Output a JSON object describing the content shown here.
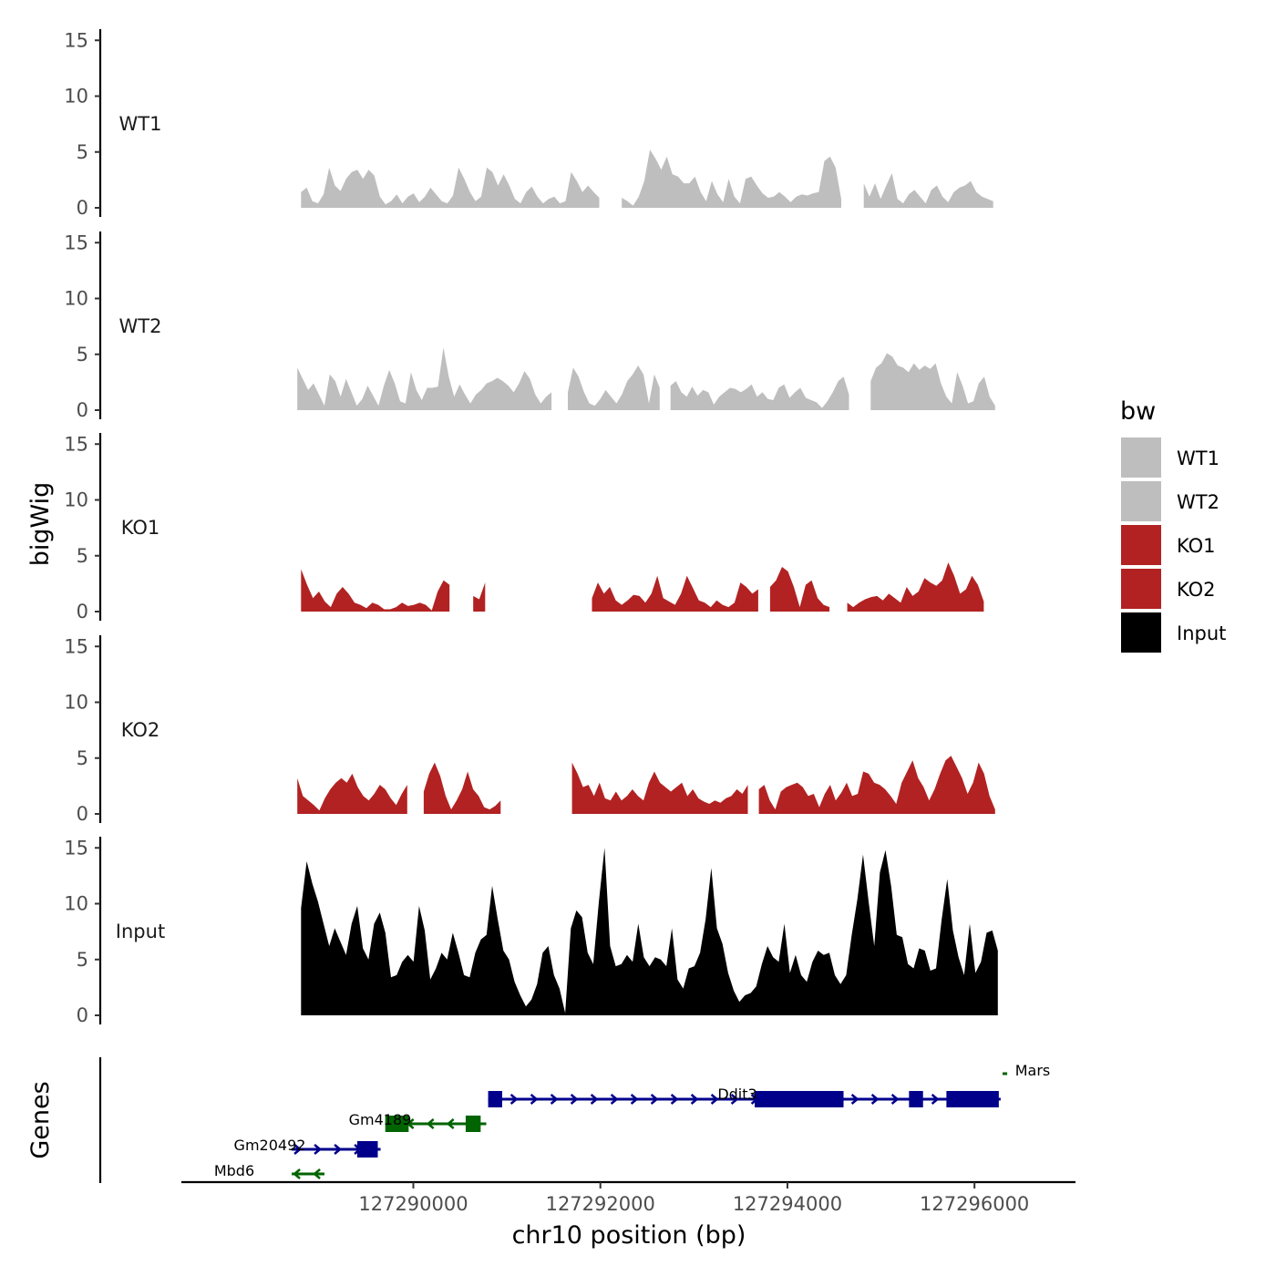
{
  "chart_data": {
    "type": "area",
    "title": "",
    "ylabel": "bigWig",
    "genes_label": "Genes",
    "xlabel": "chr10 position (bp)",
    "xlim": [
      127287520,
      127297080
    ],
    "x_ticks": [
      127290000,
      127292000,
      127294000,
      127296000
    ],
    "x_tick_labels": [
      "127290000",
      "127292000",
      "127294000",
      "127296000"
    ],
    "ylim": [
      0,
      16
    ],
    "y_ticks": [
      0,
      5,
      10,
      15
    ],
    "y_tick_labels": [
      "0",
      "5",
      "10",
      "15"
    ],
    "legend": {
      "title": "bw",
      "position": "right",
      "items": [
        {
          "label": "WT1",
          "color": "#bebebe"
        },
        {
          "label": "WT2",
          "color": "#bebebe"
        },
        {
          "label": "KO1",
          "color": "#b22222"
        },
        {
          "label": "KO2",
          "color": "#b22222"
        },
        {
          "label": "Input",
          "color": "#000000"
        }
      ]
    },
    "series": [
      {
        "name": "WT1",
        "color": "#bebebe",
        "x_start": 127288800,
        "x_end": 127296200,
        "gaps": [
          [
            127292000,
            127292200
          ],
          [
            127294600,
            127294800
          ]
        ],
        "profile": [
          1.4,
          1.8,
          0.6,
          0.4,
          1.2,
          3.6,
          2.0,
          1.5,
          2.6,
          3.2,
          3.4,
          2.6,
          3.4,
          2.9,
          1.0,
          0.3,
          0.6,
          1.2,
          0.4,
          1.0,
          1.3,
          0.5,
          1.0,
          1.8,
          1.2,
          0.6,
          0.4,
          1.1,
          3.6,
          2.6,
          1.4,
          0.6,
          1.0,
          3.6,
          3.2,
          2.0,
          3.0,
          2.0,
          0.8,
          0.4,
          1.4,
          1.9,
          1.0,
          0.4,
          0.8,
          1.0,
          0.4,
          0.6,
          3.2,
          2.4,
          1.4,
          2.0,
          1.4,
          0.9,
          1.4,
          1.0,
          0.5,
          0.9,
          0.6,
          0.2,
          1.0,
          2.4,
          5.2,
          4.4,
          3.4,
          4.6,
          3.0,
          2.8,
          2.2,
          2.2,
          2.8,
          1.4,
          0.6,
          2.4,
          1.2,
          0.5,
          2.6,
          1.0,
          0.4,
          2.6,
          2.8,
          2.0,
          1.3,
          0.9,
          1.0,
          1.4,
          1.0,
          0.5,
          1.0,
          1.2,
          1.1,
          1.3,
          1.4,
          4.2,
          4.6,
          3.6,
          0.8,
          0.4,
          2.6,
          3.0,
          2.2,
          1.0,
          2.2,
          0.8,
          2.0,
          3.1,
          0.8,
          0.4,
          1.2,
          1.6,
          1.0,
          0.4,
          1.6,
          2.0,
          1.0,
          0.5,
          1.4,
          1.8,
          2.0,
          2.4,
          1.4,
          1.0,
          0.8,
          0.6
        ]
      },
      {
        "name": "WT2",
        "color": "#bebebe",
        "x_start": 127288760,
        "x_end": 127296220,
        "gaps": [
          [
            127291480,
            127291620
          ],
          [
            127292660,
            127292740
          ],
          [
            127294700,
            127294860
          ]
        ],
        "profile": [
          3.8,
          2.8,
          1.8,
          2.4,
          1.4,
          0.4,
          3.2,
          2.6,
          1.2,
          2.8,
          1.6,
          0.4,
          1.0,
          2.2,
          1.3,
          0.4,
          2.2,
          3.6,
          2.4,
          0.8,
          0.6,
          3.4,
          1.8,
          0.9,
          2.0,
          2.0,
          2.1,
          5.6,
          3.0,
          1.2,
          2.3,
          1.4,
          0.6,
          1.4,
          1.8,
          2.4,
          2.6,
          2.9,
          2.6,
          2.2,
          1.6,
          2.4,
          3.5,
          2.8,
          1.4,
          0.6,
          1.2,
          1.6,
          2.8,
          1.4,
          1.6,
          3.8,
          3.0,
          1.6,
          0.6,
          0.4,
          1.0,
          1.8,
          1.2,
          0.6,
          1.4,
          2.6,
          3.2,
          4.0,
          3.2,
          0.6,
          3.2,
          2.0,
          1.8,
          2.2,
          2.6,
          1.6,
          1.2,
          2.1,
          1.3,
          1.8,
          1.6,
          0.5,
          1.2,
          1.6,
          2.0,
          1.9,
          1.6,
          1.9,
          2.3,
          1.2,
          1.6,
          1.0,
          0.9,
          2.0,
          2.3,
          1.1,
          1.6,
          2.0,
          1.1,
          0.9,
          0.7,
          0.2,
          0.8,
          1.6,
          2.6,
          3.0,
          1.4,
          2.6,
          3.4,
          0.8,
          2.6,
          3.8,
          4.2,
          5.1,
          4.8,
          4.0,
          3.8,
          3.4,
          4.2,
          3.6,
          4.0,
          3.7,
          4.2,
          2.4,
          1.2,
          0.6,
          3.4,
          2.2,
          0.6,
          0.8,
          2.4,
          3.0,
          1.2,
          0.4
        ]
      },
      {
        "name": "KO1",
        "color": "#b22222",
        "x_start": 127288800,
        "x_end": 127296100,
        "gaps": [
          [
            127290450,
            127290620
          ],
          [
            127290820,
            127291880
          ],
          [
            127293700,
            127293800
          ],
          [
            127294500,
            127294620
          ]
        ],
        "profile": [
          3.8,
          2.4,
          1.2,
          1.8,
          0.9,
          0.4,
          1.6,
          2.2,
          1.6,
          0.8,
          0.6,
          0.3,
          0.8,
          0.6,
          0.2,
          0.2,
          0.4,
          0.8,
          0.5,
          0.6,
          0.8,
          0.6,
          0.1,
          1.8,
          2.8,
          2.4,
          2.0,
          1.8,
          2.2,
          1.4,
          1.1,
          2.6,
          1.8,
          1.2,
          1.4,
          0.8,
          1.2,
          0.8,
          0.5,
          0.2,
          0.7,
          0.2,
          0.4,
          1.1,
          1.4,
          1.2,
          1.0,
          1.6,
          0.7,
          1.2,
          2.6,
          1.6,
          2.2,
          1.0,
          0.6,
          1.0,
          1.5,
          1.4,
          0.8,
          1.6,
          3.2,
          1.2,
          0.9,
          0.6,
          1.6,
          3.2,
          2.1,
          1.0,
          0.8,
          0.4,
          1.0,
          0.6,
          0.4,
          0.8,
          2.6,
          2.2,
          1.6,
          2.0,
          3.0,
          2.2,
          2.8,
          4.0,
          3.6,
          2.2,
          0.4,
          2.4,
          2.8,
          1.2,
          0.6,
          0.4,
          1.0,
          1.6,
          0.8,
          0.4,
          0.8,
          1.1,
          1.3,
          1.4,
          1.0,
          1.6,
          1.2,
          0.8,
          2.2,
          1.4,
          1.8,
          3.0,
          2.6,
          2.3,
          2.8,
          4.4,
          3.2,
          1.6,
          2.0,
          3.2,
          2.4,
          0.9
        ]
      },
      {
        "name": "KO2",
        "color": "#b22222",
        "x_start": 127288760,
        "x_end": 127296220,
        "gaps": [
          [
            127289950,
            127290100
          ],
          [
            127290980,
            127291650
          ],
          [
            127293600,
            127293680
          ]
        ],
        "profile": [
          3.2,
          1.6,
          1.2,
          0.8,
          0.3,
          1.4,
          2.2,
          2.8,
          3.2,
          2.8,
          3.6,
          2.4,
          1.6,
          1.2,
          1.8,
          2.6,
          2.2,
          1.4,
          0.8,
          1.8,
          2.6,
          2.0,
          1.6,
          2.0,
          3.6,
          4.6,
          3.4,
          1.6,
          0.4,
          1.2,
          2.2,
          3.8,
          2.2,
          1.6,
          0.6,
          0.4,
          0.7,
          1.2,
          0.6,
          1.0,
          1.4,
          1.2,
          0.4,
          0.8,
          1.4,
          1.0,
          2.2,
          1.8,
          2.6,
          3.8,
          4.6,
          3.6,
          2.4,
          2.6,
          1.6,
          2.8,
          1.4,
          1.2,
          2.0,
          1.2,
          1.6,
          2.2,
          1.6,
          1.2,
          2.8,
          3.8,
          2.8,
          2.4,
          2.0,
          2.4,
          2.8,
          1.6,
          2.2,
          1.4,
          1.1,
          0.9,
          1.2,
          1.0,
          1.4,
          1.6,
          2.2,
          1.8,
          2.6,
          1.6,
          2.2,
          2.6,
          1.2,
          0.4,
          2.0,
          2.4,
          2.6,
          2.8,
          2.4,
          1.6,
          1.8,
          0.6,
          1.8,
          2.6,
          1.2,
          1.9,
          2.8,
          1.6,
          1.8,
          3.8,
          3.6,
          2.8,
          2.6,
          2.2,
          1.6,
          0.9,
          2.8,
          3.8,
          4.8,
          3.2,
          2.4,
          1.2,
          2.2,
          3.6,
          4.8,
          5.2,
          4.2,
          3.2,
          1.8,
          2.8,
          4.6,
          3.6,
          1.6,
          0.4
        ]
      },
      {
        "name": "Input",
        "color": "#000000",
        "x_start": 127288800,
        "x_end": 127296250,
        "gaps": [],
        "profile": [
          9.6,
          13.8,
          11.8,
          10.2,
          8.2,
          6.2,
          7.8,
          6.6,
          5.4,
          8.2,
          9.8,
          6.0,
          5.0,
          8.2,
          9.2,
          7.4,
          3.4,
          3.6,
          4.8,
          5.4,
          4.8,
          9.8,
          7.6,
          3.2,
          4.2,
          5.6,
          5.0,
          7.4,
          5.6,
          3.6,
          3.4,
          5.6,
          6.8,
          7.2,
          11.6,
          8.6,
          5.8,
          5.0,
          3.0,
          1.8,
          0.8,
          1.4,
          2.8,
          5.6,
          6.2,
          3.6,
          2.4,
          0.2,
          7.8,
          9.4,
          8.8,
          5.6,
          4.6,
          10.2,
          15.0,
          6.2,
          4.4,
          4.6,
          5.4,
          4.8,
          8.2,
          5.2,
          4.4,
          5.2,
          5.0,
          4.4,
          7.8,
          3.2,
          2.4,
          4.2,
          4.4,
          5.6,
          8.6,
          13.2,
          7.8,
          6.4,
          3.8,
          2.2,
          1.2,
          1.8,
          2.0,
          2.6,
          4.6,
          6.2,
          5.2,
          4.8,
          8.2,
          3.8,
          5.4,
          3.6,
          3.0,
          4.8,
          5.8,
          5.4,
          5.6,
          3.6,
          2.8,
          3.6,
          7.2,
          10.4,
          14.4,
          10.2,
          6.2,
          12.8,
          14.8,
          11.6,
          7.2,
          7.0,
          4.6,
          4.2,
          6.0,
          5.8,
          4.0,
          4.2,
          8.6,
          12.2,
          7.6,
          5.2,
          3.6,
          8.2,
          3.8,
          4.8,
          7.4,
          7.6,
          5.8
        ]
      }
    ],
    "genes": [
      {
        "name": "Ddit3",
        "color": "#00008b",
        "strand": "+",
        "start": 127290800,
        "end": 127296280,
        "label_x": 127293900,
        "exons": [
          [
            127290800,
            127290950
          ],
          [
            127293650,
            127294600
          ],
          [
            127295300,
            127295450
          ],
          [
            127295700,
            127296260
          ]
        ]
      },
      {
        "name": "Mars",
        "color": "#006400",
        "strand": "-",
        "start": 127296300,
        "end": 127296350,
        "label_x": 127296400,
        "exons": []
      },
      {
        "name": "Gm4189",
        "color": "#006400",
        "strand": "-",
        "start": 127289700,
        "end": 127290780,
        "label_x": 127290150,
        "exons": [
          [
            127289700,
            127289950
          ],
          [
            127290560,
            127290720
          ]
        ]
      },
      {
        "name": "Gm20492",
        "color": "#00008b",
        "strand": "+",
        "start": 127288700,
        "end": 127289650,
        "label_x": 127289150,
        "exons": [
          [
            127289400,
            127289620
          ]
        ]
      },
      {
        "name": "Mbd6",
        "color": "#006400",
        "strand": "-",
        "start": 127288700,
        "end": 127289050,
        "label_x": 127288900,
        "exons": []
      }
    ]
  }
}
